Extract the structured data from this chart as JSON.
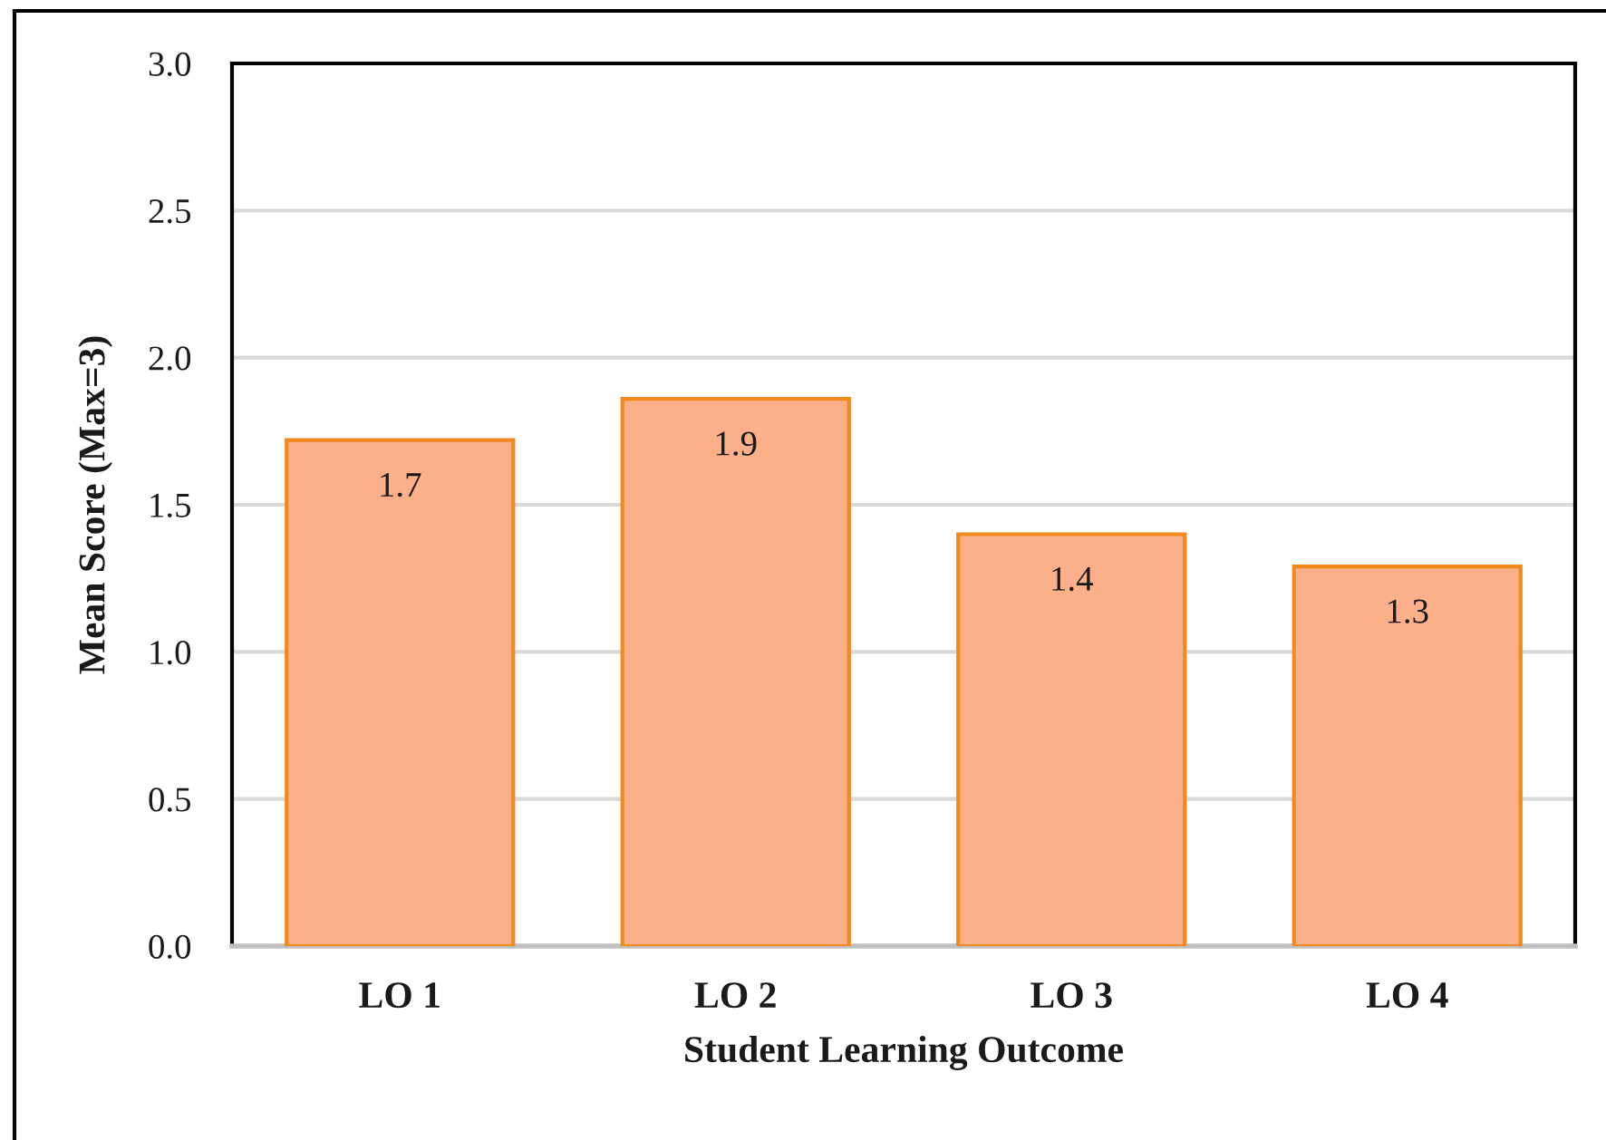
{
  "chart_data": {
    "type": "bar",
    "xlabel": "Student Learning Outcome",
    "ylabel": "Mean Score (Max=3)",
    "categories": [
      "LO 1",
      "LO 2",
      "LO 3",
      "LO 4"
    ],
    "values": [
      1.72,
      1.86,
      1.4,
      1.29
    ],
    "value_labels": [
      "1.7",
      "1.9",
      "1.4",
      "1.3"
    ],
    "color": "#fbb08a",
    "ylim": [
      0,
      3
    ],
    "yticks": [
      {
        "value": 0,
        "label": "0.0"
      },
      0.5,
      {
        "value": 1,
        "label": "1.0"
      },
      1.5,
      {
        "value": 2,
        "label": "2.0"
      },
      2.5,
      {
        "value": 3,
        "label": "3.0"
      }
    ],
    "grid": "y"
  }
}
